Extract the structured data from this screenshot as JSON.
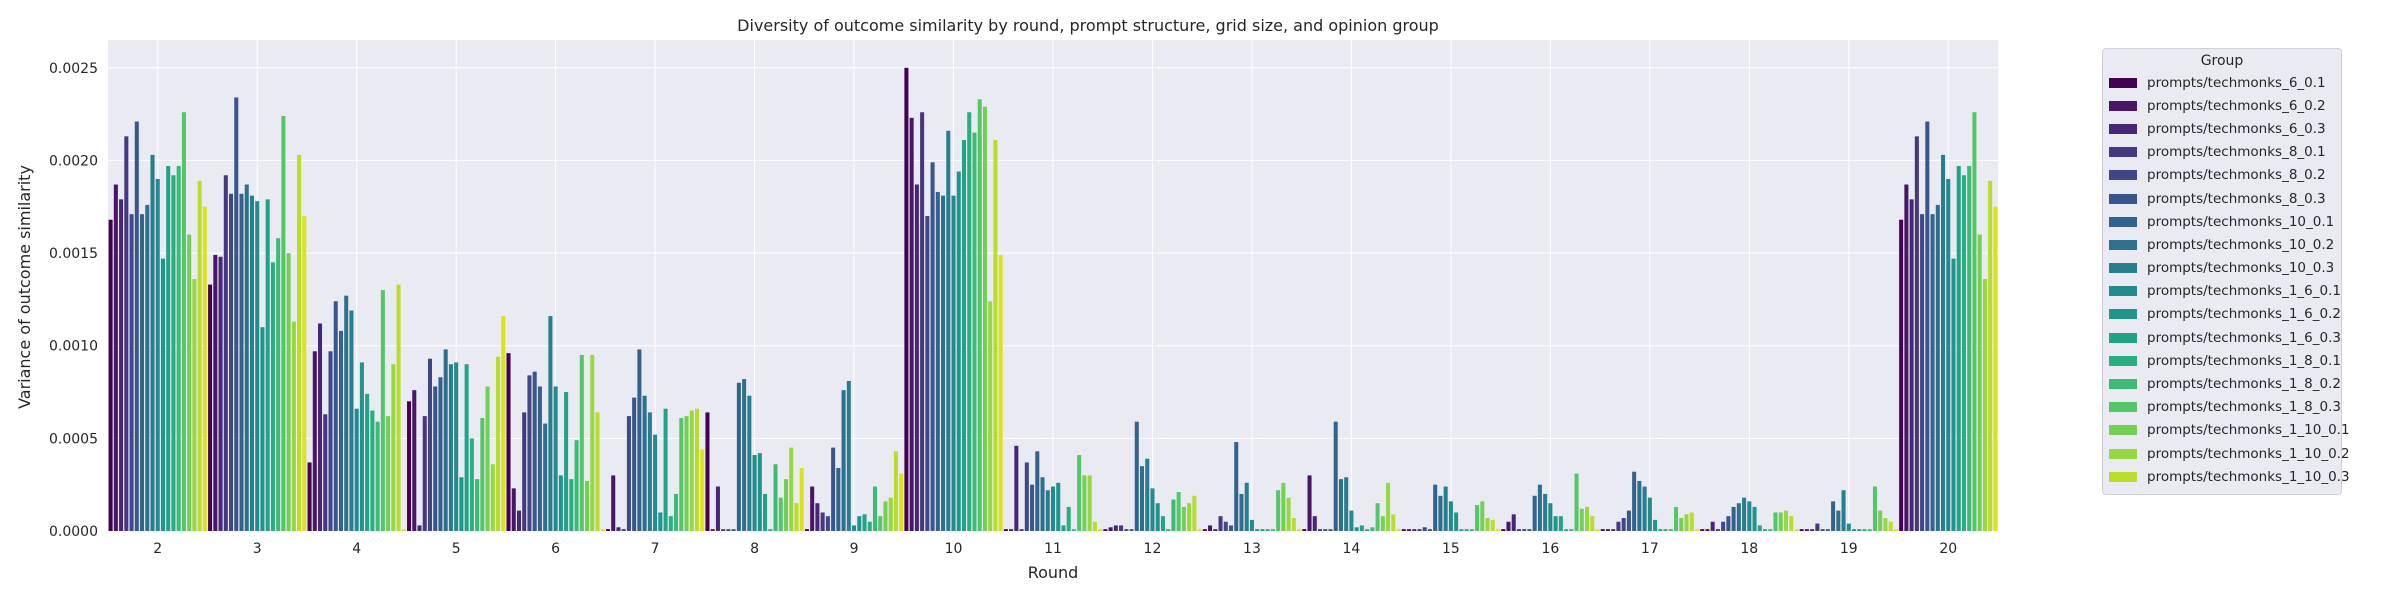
{
  "chart_data": {
    "type": "bar",
    "title": "Diversity of outcome similarity by round, prompt structure, grid size, and opinion group",
    "xlabel": "Round",
    "ylabel": "Variance of outcome similarity",
    "ylim": [
      0,
      0.00265
    ],
    "yticks": [
      "0.0000",
      "0.0005",
      "0.0010",
      "0.0015",
      "0.0020",
      "0.0025"
    ],
    "ytick_values": [
      0,
      0.0005,
      0.001,
      0.0015,
      0.002,
      0.0025
    ],
    "grid": true,
    "legend_placement": "outside-right",
    "legend_title": "Group",
    "categories": [
      "2",
      "3",
      "4",
      "5",
      "6",
      "7",
      "8",
      "9",
      "10",
      "11",
      "12",
      "13",
      "14",
      "15",
      "16",
      "17",
      "18",
      "19",
      "20"
    ],
    "series": [
      {
        "name": "prompts/techmonks_6_0.1",
        "color": "#440154",
        "values": [
          0.00168,
          0.00133,
          0.00037,
          0.0007,
          0.00096,
          1e-05,
          0.00064,
          1e-05,
          0.0025,
          1e-05,
          1e-05,
          1e-05,
          1e-05,
          1e-05,
          1e-05,
          1e-05,
          1e-05,
          1e-05,
          0.00168
        ]
      },
      {
        "name": "prompts/techmonks_6_0.2",
        "color": "#481567",
        "values": [
          0.00187,
          0.00149,
          0.00097,
          0.00076,
          0.00023,
          0.0003,
          1e-05,
          0.00024,
          0.00223,
          1e-05,
          2e-05,
          3e-05,
          0.0003,
          1e-05,
          5e-05,
          1e-05,
          1e-05,
          1e-05,
          0.00187
        ]
      },
      {
        "name": "prompts/techmonks_6_0.3",
        "color": "#482677",
        "values": [
          0.00179,
          0.00148,
          0.00112,
          3e-05,
          0.00011,
          2e-05,
          0.00024,
          0.00015,
          0.00187,
          0.00046,
          3e-05,
          1e-05,
          8e-05,
          1e-05,
          9e-05,
          1e-05,
          5e-05,
          1e-05,
          0.00179
        ]
      },
      {
        "name": "prompts/techmonks_8_0.1",
        "color": "#453781",
        "values": [
          0.00213,
          0.00192,
          0.00063,
          0.00062,
          0.00064,
          1e-05,
          1e-05,
          0.0001,
          0.00226,
          1e-05,
          3e-05,
          8e-05,
          1e-05,
          1e-05,
          1e-05,
          5e-05,
          1e-05,
          4e-05,
          0.00213
        ]
      },
      {
        "name": "prompts/techmonks_8_0.2",
        "color": "#404788",
        "values": [
          0.00171,
          0.00182,
          0.00097,
          0.00093,
          0.00084,
          0.00062,
          1e-05,
          8e-05,
          0.0017,
          0.00037,
          1e-05,
          5e-05,
          1e-05,
          2e-05,
          1e-05,
          7e-05,
          5e-05,
          1e-05,
          0.00171
        ]
      },
      {
        "name": "prompts/techmonks_8_0.3",
        "color": "#39568c",
        "values": [
          0.00221,
          0.00234,
          0.00124,
          0.00078,
          0.00086,
          0.00072,
          1e-05,
          0.00045,
          0.00199,
          0.00025,
          1e-05,
          3e-05,
          1e-05,
          1e-05,
          1e-05,
          0.00011,
          8e-05,
          1e-05,
          0.00221
        ]
      },
      {
        "name": "prompts/techmonks_10_0.1",
        "color": "#33638d",
        "values": [
          0.00171,
          0.00182,
          0.00108,
          0.00083,
          0.00078,
          0.00098,
          0.0008,
          0.00034,
          0.00183,
          0.00043,
          0.00059,
          0.00048,
          0.00059,
          0.00025,
          0.00019,
          0.00032,
          0.00013,
          0.00016,
          0.00171
        ]
      },
      {
        "name": "prompts/techmonks_10_0.2",
        "color": "#2d708e",
        "values": [
          0.00176,
          0.00187,
          0.00127,
          0.00098,
          0.00058,
          0.00073,
          0.00082,
          0.00076,
          0.00181,
          0.00029,
          0.00035,
          0.0002,
          0.00028,
          0.00019,
          0.00025,
          0.00027,
          0.00015,
          0.00011,
          0.00176
        ]
      },
      {
        "name": "prompts/techmonks_10_0.3",
        "color": "#287d8e",
        "values": [
          0.00203,
          0.00181,
          0.00119,
          0.0009,
          0.00116,
          0.00064,
          0.00073,
          0.00081,
          0.00216,
          0.00022,
          0.00039,
          0.00026,
          0.00029,
          0.00024,
          0.0002,
          0.00024,
          0.00018,
          0.00022,
          0.00203
        ]
      },
      {
        "name": "prompts/techmonks_1_6_0.1",
        "color": "#238a8d",
        "values": [
          0.0019,
          0.00178,
          0.00066,
          0.00091,
          0.00078,
          0.00052,
          0.00041,
          3e-05,
          0.00181,
          0.00024,
          0.00023,
          6e-05,
          0.00011,
          0.00016,
          0.00015,
          0.00018,
          0.00016,
          4e-05,
          0.0019
        ]
      },
      {
        "name": "prompts/techmonks_1_6_0.2",
        "color": "#1f968b",
        "values": [
          0.00147,
          0.0011,
          0.00091,
          0.00029,
          0.0003,
          0.0001,
          0.00042,
          8e-05,
          0.00194,
          0.00026,
          0.00015,
          1e-05,
          2e-05,
          0.0001,
          8e-05,
          6e-05,
          0.00013,
          1e-05,
          0.00147
        ]
      },
      {
        "name": "prompts/techmonks_1_6_0.3",
        "color": "#20a386",
        "values": [
          0.00197,
          0.00179,
          0.00074,
          0.0009,
          0.00075,
          0.00066,
          0.0002,
          9e-05,
          0.00211,
          3e-05,
          8e-05,
          1e-05,
          3e-05,
          1e-05,
          8e-05,
          1e-05,
          3e-05,
          1e-05,
          0.00197
        ]
      },
      {
        "name": "prompts/techmonks_1_8_0.1",
        "color": "#29af7f",
        "values": [
          0.00192,
          0.00145,
          0.00065,
          0.0005,
          0.00028,
          8e-05,
          1e-05,
          5e-05,
          0.00226,
          0.00013,
          1e-05,
          1e-05,
          1e-05,
          1e-05,
          1e-05,
          1e-05,
          1e-05,
          1e-05,
          0.00192
        ]
      },
      {
        "name": "prompts/techmonks_1_8_0.2",
        "color": "#3cbb75",
        "values": [
          0.00197,
          0.00158,
          0.00059,
          0.00028,
          0.00049,
          0.0002,
          0.00036,
          0.00024,
          0.00215,
          1e-05,
          0.00017,
          1e-05,
          2e-05,
          1e-05,
          1e-05,
          1e-05,
          1e-05,
          1e-05,
          0.00197
        ]
      },
      {
        "name": "prompts/techmonks_1_8_0.3",
        "color": "#55c667",
        "values": [
          0.00226,
          0.00224,
          0.0013,
          0.00061,
          0.00095,
          0.00061,
          0.00018,
          8e-05,
          0.00233,
          0.00041,
          0.00021,
          0.00022,
          0.00015,
          0.00014,
          0.00031,
          0.00013,
          0.0001,
          0.00024,
          0.00226
        ]
      },
      {
        "name": "prompts/techmonks_1_10_0.1",
        "color": "#73d055",
        "values": [
          0.0016,
          0.0015,
          0.00062,
          0.00078,
          0.00027,
          0.00062,
          0.00028,
          0.00016,
          0.00229,
          0.0003,
          0.00013,
          0.00026,
          8e-05,
          0.00016,
          0.00012,
          7e-05,
          0.0001,
          0.00011,
          0.0016
        ]
      },
      {
        "name": "prompts/techmonks_1_10_0.2",
        "color": "#95d840",
        "values": [
          0.00136,
          0.00113,
          0.0009,
          0.00036,
          0.00095,
          0.00065,
          0.00045,
          0.00018,
          0.00124,
          0.0003,
          0.00015,
          0.00018,
          0.00026,
          7e-05,
          0.00013,
          9e-05,
          0.00011,
          7e-05,
          0.00136
        ]
      },
      {
        "name": "prompts/techmonks_1_10_0.3",
        "color": "#b8de29",
        "values": [
          0.00189,
          0.00203,
          0.00133,
          0.00094,
          0.00064,
          0.00066,
          0.00015,
          0.00043,
          0.00211,
          5e-05,
          0.00019,
          7e-05,
          9e-05,
          6e-05,
          8e-05,
          0.0001,
          8e-05,
          5e-05,
          0.00189
        ]
      },
      {
        "name": "prompts/techmonks_1_10_0.3_",
        "legend": false,
        "color": "#dce319",
        "values": [
          0.00175,
          0.0017,
          1e-05,
          0.00116,
          1e-05,
          0.00044,
          0.00034,
          0.00031,
          0.00149,
          1e-05,
          1e-05,
          1e-05,
          1e-05,
          1e-05,
          1e-05,
          1e-05,
          1e-05,
          1e-05,
          0.00175
        ]
      }
    ]
  }
}
